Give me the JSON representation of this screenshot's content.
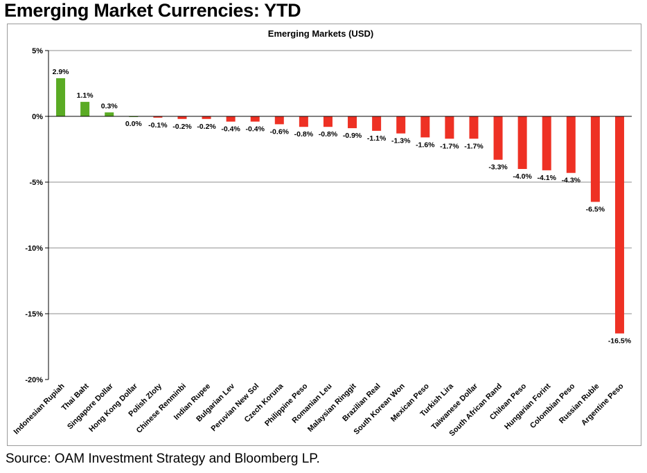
{
  "page": {
    "headline": "Emerging Market Currencies: YTD",
    "source": "Source: OAM Investment Strategy and Bloomberg LP."
  },
  "chart_data": {
    "type": "bar",
    "title": "Emerging Markets (USD)",
    "xlabel": "",
    "ylabel": "",
    "ylim": [
      -20,
      5
    ],
    "y_ticks": [
      5,
      0,
      -5,
      -10,
      -15,
      -20
    ],
    "y_tick_labels": [
      "5%",
      "0%",
      "-5%",
      "-10%",
      "-15%",
      "-20%"
    ],
    "grid": true,
    "legend": "none",
    "categories": [
      "Indonesian Rupiah",
      "Thai Baht",
      "Singapore Dollar",
      "Hong Kong Dollar",
      "Polish Zloty",
      "Chinese Renminbi",
      "Indian Rupee",
      "Bulgarian Lev",
      "Peruvian New Sol",
      "Czech Koruna",
      "Philippine Peso",
      "Romanian Leu",
      "Malaysian Ringgit",
      "Brazilian Real",
      "South Korean Won",
      "Mexican Peso",
      "Turkish Lira",
      "Taiwanese Dollar",
      "South African Rand",
      "Chilean Peso",
      "Hungarian Forint",
      "Colombian Peso",
      "Russian Ruble",
      "Argentine Peso"
    ],
    "values": [
      2.9,
      1.1,
      0.3,
      0.0,
      -0.1,
      -0.2,
      -0.2,
      -0.4,
      -0.4,
      -0.6,
      -0.8,
      -0.8,
      -0.9,
      -1.1,
      -1.3,
      -1.6,
      -1.7,
      -1.7,
      -3.3,
      -4.0,
      -4.1,
      -4.3,
      -6.5,
      -16.5
    ],
    "data_labels": [
      "2.9%",
      "1.1%",
      "0.3%",
      "0.0%",
      "-0.1%",
      "-0.2%",
      "-0.2%",
      "-0.4%",
      "-0.4%",
      "-0.6%",
      "-0.8%",
      "-0.8%",
      "-0.9%",
      "-1.1%",
      "-1.3%",
      "-1.6%",
      "-1.7%",
      "-1.7%",
      "-3.3%",
      "-4.0%",
      "-4.1%",
      "-4.3%",
      "-6.5%",
      "-16.5%"
    ],
    "colors": {
      "positive": "#5aab24",
      "negative": "#ee3124",
      "grid": "#8c8c8c",
      "axis": "#000000"
    }
  }
}
